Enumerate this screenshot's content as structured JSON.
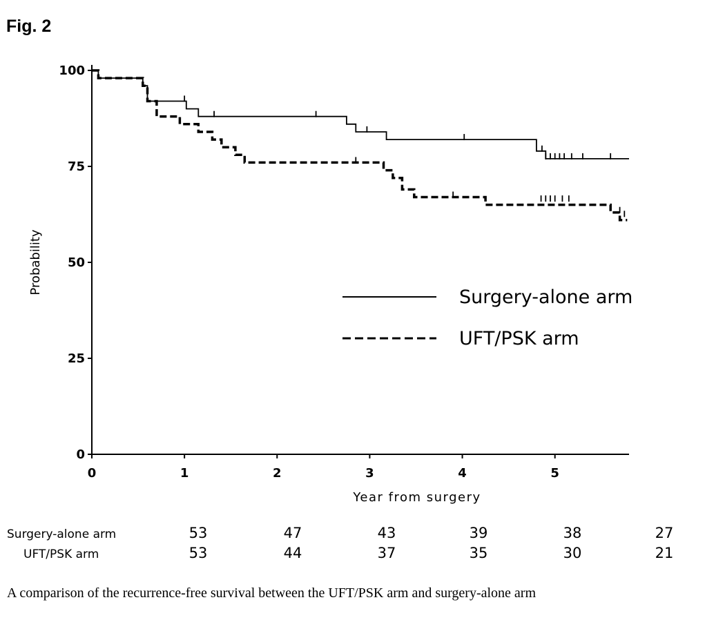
{
  "figure_label": "Fig. 2",
  "caption": "A comparison of the recurrence-free survival between the UFT/PSK arm and surgery-alone arm",
  "chart_data": {
    "type": "line",
    "xlabel": "Year from surgery",
    "ylabel": "Probability",
    "xlim": [
      0,
      5.8
    ],
    "ylim": [
      0,
      100
    ],
    "x_ticks": [
      0,
      1,
      2,
      3,
      4,
      5
    ],
    "y_ticks": [
      0,
      25,
      50,
      75,
      100
    ],
    "legend_position": "center-right",
    "series": [
      {
        "name": "Surgery-alone arm",
        "line_style": "solid",
        "color": "#000000",
        "steps": [
          [
            0,
            100
          ],
          [
            0.07,
            98
          ],
          [
            0.55,
            96
          ],
          [
            0.6,
            92
          ],
          [
            1.02,
            90
          ],
          [
            1.15,
            88
          ],
          [
            2.75,
            86
          ],
          [
            2.85,
            84
          ],
          [
            3.18,
            82
          ],
          [
            4.8,
            79
          ],
          [
            4.9,
            77
          ],
          [
            5.8,
            77
          ]
        ],
        "censored": [
          [
            1.0,
            92
          ],
          [
            1.32,
            88
          ],
          [
            2.42,
            88
          ],
          [
            2.97,
            84
          ],
          [
            4.02,
            82
          ],
          [
            4.86,
            79
          ],
          [
            4.9,
            77
          ],
          [
            4.95,
            77
          ],
          [
            5.0,
            77
          ],
          [
            5.05,
            77
          ],
          [
            5.1,
            77
          ],
          [
            5.18,
            77
          ],
          [
            5.3,
            77
          ],
          [
            5.6,
            77
          ]
        ]
      },
      {
        "name": "UFT/PSK arm",
        "line_style": "dashed",
        "color": "#000000",
        "steps": [
          [
            0,
            100
          ],
          [
            0.07,
            98
          ],
          [
            0.55,
            96
          ],
          [
            0.6,
            92
          ],
          [
            0.7,
            88
          ],
          [
            0.95,
            86
          ],
          [
            1.15,
            84
          ],
          [
            1.3,
            82
          ],
          [
            1.4,
            80
          ],
          [
            1.55,
            78
          ],
          [
            1.65,
            76
          ],
          [
            3.15,
            74
          ],
          [
            3.25,
            72
          ],
          [
            3.35,
            69
          ],
          [
            3.48,
            67
          ],
          [
            4.25,
            65
          ],
          [
            5.6,
            63
          ],
          [
            5.7,
            61
          ],
          [
            5.78,
            61
          ]
        ],
        "censored": [
          [
            2.85,
            76
          ],
          [
            3.9,
            67
          ],
          [
            4.85,
            66
          ],
          [
            4.9,
            66
          ],
          [
            4.95,
            66
          ],
          [
            5.0,
            66
          ],
          [
            5.08,
            66
          ],
          [
            5.15,
            66
          ],
          [
            5.7,
            63
          ],
          [
            5.75,
            62
          ]
        ]
      }
    ],
    "at_risk": {
      "rows": [
        {
          "label": "Surgery-alone arm",
          "values": [
            53,
            47,
            43,
            39,
            38,
            27
          ]
        },
        {
          "label": "UFT/PSK arm",
          "values": [
            53,
            44,
            37,
            35,
            30,
            21
          ]
        }
      ]
    }
  }
}
